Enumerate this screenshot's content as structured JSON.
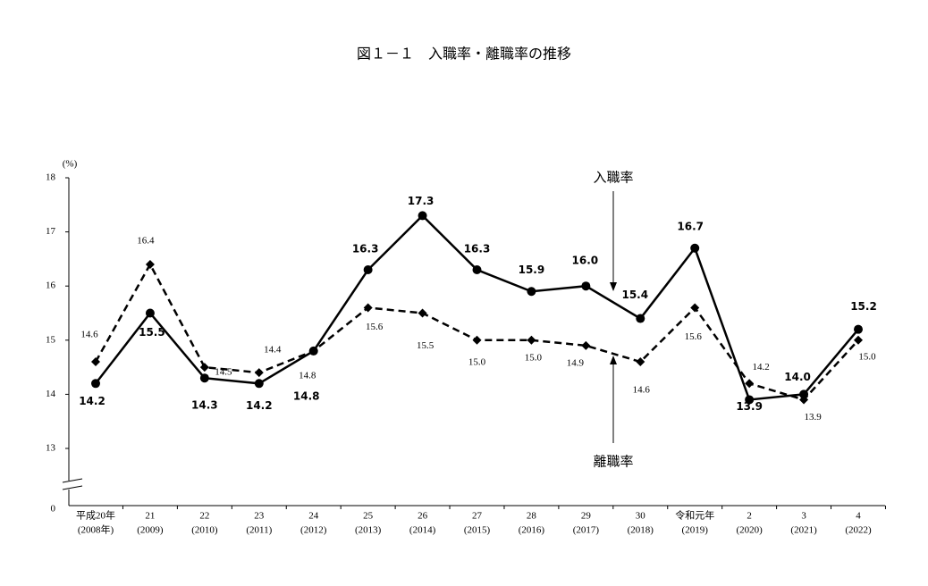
{
  "chart_data": {
    "type": "line",
    "title": "図１－１　入職率・離職率の推移",
    "y_unit": "(%)",
    "categories": [
      [
        "平成20年",
        "(2008年)"
      ],
      [
        "21",
        "(2009)"
      ],
      [
        "22",
        "(2010)"
      ],
      [
        "23",
        "(2011)"
      ],
      [
        "24",
        "(2012)"
      ],
      [
        "25",
        "(2013)"
      ],
      [
        "26",
        "(2014)"
      ],
      [
        "27",
        "(2015)"
      ],
      [
        "28",
        "(2016)"
      ],
      [
        "29",
        "(2017)"
      ],
      [
        "30",
        "(2018)"
      ],
      [
        "令和元年",
        "(2019)"
      ],
      [
        "2",
        "(2020)"
      ],
      [
        "3",
        "(2021)"
      ],
      [
        "4",
        "(2022)"
      ]
    ],
    "series": [
      {
        "name": "入職率",
        "color": "#000000",
        "dash": false,
        "marker": "circle",
        "values": [
          14.2,
          15.5,
          14.3,
          14.2,
          14.8,
          16.3,
          17.3,
          16.3,
          15.9,
          16.0,
          15.4,
          16.7,
          13.9,
          14.0,
          15.2
        ],
        "value_labels": [
          "14.2",
          "15.5",
          "14.3",
          "14.2",
          "14.8",
          "16.3",
          "17.3",
          "16.3",
          "15.9",
          "16.0",
          "15.4",
          "16.7",
          "13.9",
          "14.0",
          "15.2"
        ]
      },
      {
        "name": "離職率",
        "color": "#000000",
        "dash": true,
        "marker": "diamond",
        "values": [
          14.6,
          16.4,
          14.5,
          14.4,
          14.8,
          15.6,
          15.5,
          15.0,
          15.0,
          14.9,
          14.6,
          15.6,
          14.2,
          13.9,
          15.0
        ],
        "value_labels": [
          "14.6",
          "16.4",
          "14.5",
          "14.4",
          "14.8",
          "15.6",
          "15.5",
          "15.0",
          "15.0",
          "14.9",
          "14.6",
          "15.6",
          "14.2",
          "13.9",
          "15.0"
        ]
      }
    ],
    "ylim": [
      0,
      18
    ],
    "yticks": [
      0,
      13,
      14,
      15,
      16,
      17,
      18
    ],
    "y_axis_break": true
  }
}
